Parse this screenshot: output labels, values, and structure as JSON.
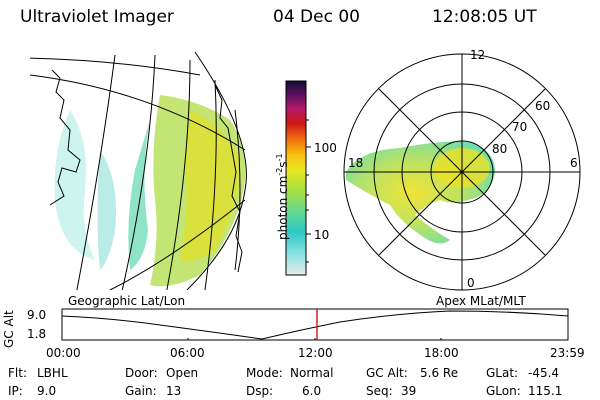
{
  "header": {
    "title": "Ultraviolet Imager",
    "date": "04 Dec 00",
    "time": "12:08:05 UT"
  },
  "colorbar": {
    "label": "photon cm",
    "label_sup1": "-2",
    "label_mid": "s",
    "label_sup2": "-1",
    "tick_100": "100",
    "tick_10": "10"
  },
  "polar": {
    "mlt_12": "12",
    "mlt_18": "18",
    "mlt_6": "6",
    "mlt_0": "0",
    "lat_60": "60",
    "lat_70": "70",
    "lat_80": "80"
  },
  "panels": {
    "left_label": "Geographic Lat/Lon",
    "right_label": "Apex MLat/MLT"
  },
  "timeline": {
    "ylabel": "GC Alt",
    "ytick_top": "9.0",
    "ytick_bottom": "1.8",
    "xticks": [
      "00:00",
      "06:00",
      "12:00",
      "18:00",
      "23:59"
    ]
  },
  "info": {
    "flt_label": "Flt:",
    "flt_value": "LBHL",
    "ip_label": "IP:",
    "ip_value": "9.0",
    "door_label": "Door:",
    "door_value": "Open",
    "gain_label": "Gain:",
    "gain_value": "13",
    "mode_label": "Mode:",
    "mode_value": "Normal",
    "dsp_label": "Dsp:",
    "dsp_value": "6.0",
    "gcalt_label": "GC Alt:",
    "gcalt_value": "5.6 Re",
    "seq_label": "Seq:",
    "seq_value": "39",
    "glat_label": "GLat:",
    "glat_value": "-45.4",
    "glon_label": "GLon:",
    "glon_value": "115.1"
  },
  "colors": {
    "cursor": "#cc0000",
    "aurora_low": "#b8e85a",
    "aurora_high": "#f0e020",
    "aurora_edge": "#40d8c0"
  }
}
